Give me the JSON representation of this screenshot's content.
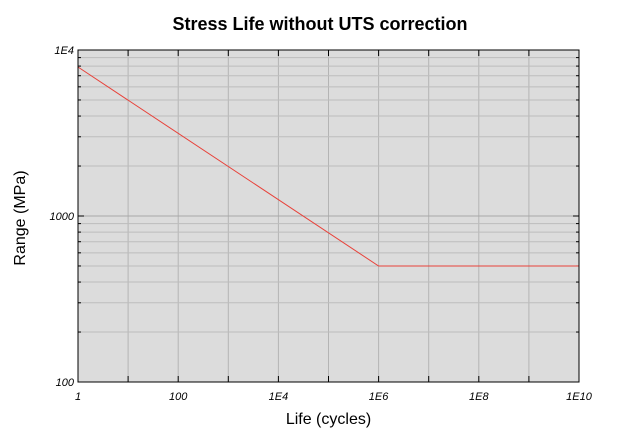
{
  "chart_data": {
    "type": "line",
    "title": "Stress Life without UTS correction",
    "xlabel": "Life (cycles)",
    "ylabel": "Range (MPa)",
    "x_scale": "log",
    "y_scale": "log",
    "xlim": [
      1,
      10000000000
    ],
    "ylim": [
      100,
      10000
    ],
    "x_ticks": [
      {
        "value": 1,
        "label": "1"
      },
      {
        "value": 100,
        "label": "100"
      },
      {
        "value": 10000,
        "label": "1E4"
      },
      {
        "value": 1000000,
        "label": "1E6"
      },
      {
        "value": 100000000,
        "label": "1E8"
      },
      {
        "value": 10000000000,
        "label": "1E10"
      }
    ],
    "y_ticks": [
      {
        "value": 100,
        "label": "100"
      },
      {
        "value": 1000,
        "label": "1000"
      },
      {
        "value": 10000,
        "label": "1E4"
      }
    ],
    "grid": true,
    "plot_background": "#dcdcdc",
    "series": [
      {
        "color": "#e8423a",
        "x": [
          1,
          1000000,
          10000000000
        ],
        "y": [
          7900,
          500,
          500
        ]
      }
    ]
  }
}
